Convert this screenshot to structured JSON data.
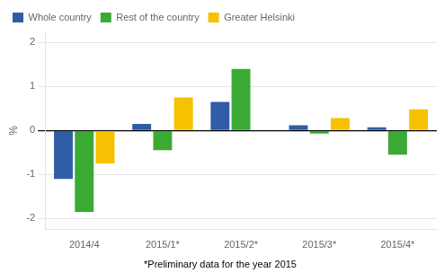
{
  "chart_data": {
    "type": "bar",
    "categories": [
      "2014/4",
      "2015/1*",
      "2015/2*",
      "2015/3*",
      "2015/4*"
    ],
    "series": [
      {
        "name": "Whole country",
        "color": "#2E5DA6",
        "values": [
          -1.1,
          0.15,
          0.65,
          0.12,
          0.07
        ]
      },
      {
        "name": "Rest of the country",
        "color": "#3AAA35",
        "values": [
          -1.85,
          -0.45,
          1.4,
          -0.07,
          -0.55
        ]
      },
      {
        "name": "Greater Helsinki",
        "color": "#F5C100",
        "values": [
          -0.75,
          0.75,
          -0.02,
          0.28,
          0.48
        ]
      }
    ],
    "ylabel": "%",
    "ylim": [
      -2.25,
      2.25
    ],
    "yticks": [
      -2,
      -1,
      0,
      1,
      2
    ],
    "grid": true,
    "legend": "upper left",
    "annotations": [
      "*Preliminary data for the year 2015"
    ]
  }
}
